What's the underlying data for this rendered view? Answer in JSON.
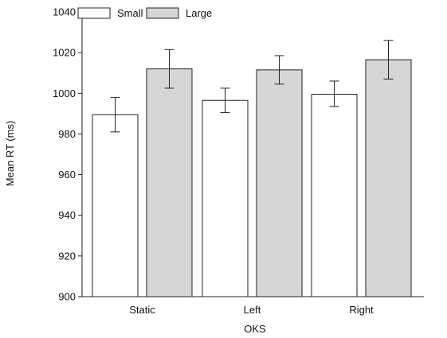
{
  "chart_data": {
    "type": "bar",
    "title": "",
    "xlabel": "OKS",
    "ylabel": "Mean RT (ms)",
    "ylim": [
      900,
      1040
    ],
    "yticks": [
      900,
      920,
      940,
      960,
      980,
      1000,
      1020,
      1040
    ],
    "categories": [
      "Static",
      "Left",
      "Right"
    ],
    "legend_position": "top-left",
    "grid": false,
    "series": [
      {
        "name": "Small",
        "color": "#ffffff",
        "values": [
          989.5,
          996.5,
          999.5
        ],
        "error_low": [
          981,
          990.5,
          993.5
        ],
        "error_high": [
          998,
          1002.5,
          1006
        ]
      },
      {
        "name": "Large",
        "color": "#d6d6d6",
        "values": [
          1012,
          1011.5,
          1016.5
        ],
        "error_low": [
          1002.5,
          1004.5,
          1007
        ],
        "error_high": [
          1021.5,
          1018.5,
          1026
        ]
      }
    ]
  }
}
